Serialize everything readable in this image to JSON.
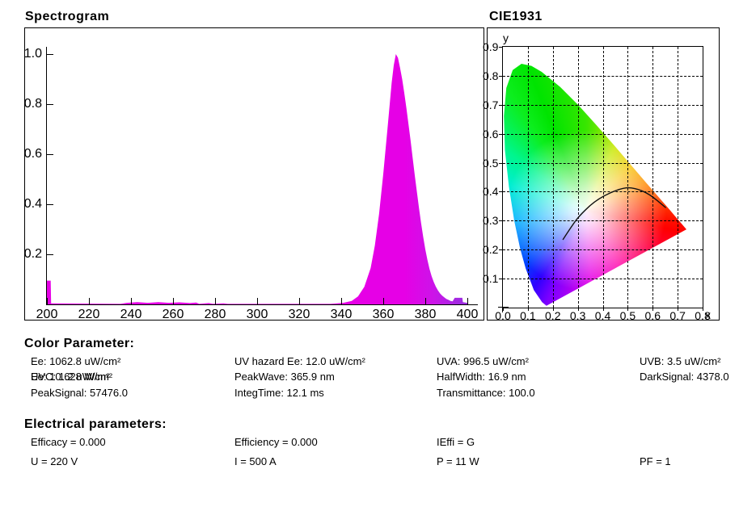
{
  "spectrogram_panel": {
    "title": "Spectrogram"
  },
  "cie_panel": {
    "title": "CIE1931",
    "xlabel": "x",
    "ylabel": "y"
  },
  "chart_data": [
    {
      "id": "spectrogram",
      "type": "area",
      "title": "Spectrogram",
      "xlabel": "",
      "ylabel": "",
      "xlim": [
        200,
        400
      ],
      "ylim": [
        0,
        1.05
      ],
      "grid": false,
      "x_ticks": [
        200,
        220,
        240,
        260,
        280,
        300,
        320,
        340,
        360,
        380,
        400
      ],
      "y_ticks": [
        0.2,
        0.4,
        0.6,
        0.8,
        1.0
      ],
      "peak_wavelength_nm": 365.9,
      "half_width_nm": 16.9,
      "fill_color": "#e600e6",
      "tail_color": "#9a2fe0",
      "points": [
        [
          200,
          0.095
        ],
        [
          201.8,
          0.095
        ],
        [
          202,
          0.004
        ],
        [
          235,
          0.002
        ],
        [
          238,
          0.006
        ],
        [
          243,
          0.009
        ],
        [
          248,
          0.006
        ],
        [
          253,
          0.009
        ],
        [
          258,
          0.006
        ],
        [
          263,
          0.008
        ],
        [
          268,
          0.005
        ],
        [
          271,
          0.007
        ],
        [
          272.5,
          0.002
        ],
        [
          277,
          0.005
        ],
        [
          279,
          0.002
        ],
        [
          284,
          0.004
        ],
        [
          286,
          0.002
        ],
        [
          300,
          0.002
        ],
        [
          335,
          0.002
        ],
        [
          341,
          0.006
        ],
        [
          345,
          0.014
        ],
        [
          348,
          0.032
        ],
        [
          351,
          0.07
        ],
        [
          354,
          0.145
        ],
        [
          356,
          0.235
        ],
        [
          358,
          0.36
        ],
        [
          360,
          0.52
        ],
        [
          362,
          0.7
        ],
        [
          364,
          0.885
        ],
        [
          365,
          0.955
        ],
        [
          366,
          1.0
        ],
        [
          367,
          0.985
        ],
        [
          368,
          0.945
        ],
        [
          369,
          0.9
        ],
        [
          370,
          0.845
        ],
        [
          371,
          0.785
        ],
        [
          372,
          0.72
        ],
        [
          373,
          0.655
        ],
        [
          374,
          0.585
        ],
        [
          375,
          0.515
        ],
        [
          376,
          0.45
        ],
        [
          377,
          0.385
        ],
        [
          378,
          0.325
        ],
        [
          379,
          0.27
        ],
        [
          380,
          0.22
        ],
        [
          381,
          0.178
        ],
        [
          382,
          0.142
        ],
        [
          383,
          0.113
        ],
        [
          384,
          0.09
        ],
        [
          385,
          0.071
        ],
        [
          386,
          0.056
        ],
        [
          387,
          0.044
        ],
        [
          388,
          0.035
        ],
        [
          389,
          0.028
        ],
        [
          390,
          0.022
        ],
        [
          391,
          0.018
        ],
        [
          392,
          0.014
        ],
        [
          393,
          0.012
        ],
        [
          394,
          0.026
        ],
        [
          397.6,
          0.026
        ],
        [
          397.9,
          0.009
        ],
        [
          399,
          0.007
        ],
        [
          400,
          0.006
        ]
      ]
    },
    {
      "id": "cie1931",
      "type": "scatter",
      "title": "CIE1931",
      "xlabel": "x",
      "ylabel": "y",
      "xlim": [
        0,
        0.8
      ],
      "ylim": [
        0,
        0.9
      ],
      "grid": "dashed",
      "x_tick_labels": [
        "0.0",
        "0.1",
        "0.2",
        "0.3",
        "0.4",
        "0.5",
        "0.6",
        "0.7",
        "0.8"
      ],
      "y_tick_labels": [
        "0.1",
        "0.2",
        "0.3",
        "0.4",
        "0.5",
        "0.6",
        "0.7",
        "0.8",
        "0.9"
      ],
      "marker": [
        0.0,
        0.0
      ],
      "planckian_locus": [
        [
          0.24,
          0.234
        ],
        [
          0.2807,
          0.2884
        ],
        [
          0.3135,
          0.3237
        ],
        [
          0.3805,
          0.3768
        ],
        [
          0.477,
          0.4137
        ],
        [
          0.5267,
          0.4133
        ],
        [
          0.5857,
          0.3931
        ],
        [
          0.6528,
          0.3444
        ]
      ],
      "spectral_locus": [
        [
          0.1741,
          0.005
        ],
        [
          0.1566,
          0.0177
        ],
        [
          0.1241,
          0.0578
        ],
        [
          0.0913,
          0.1327
        ],
        [
          0.0687,
          0.2007
        ],
        [
          0.0454,
          0.295
        ],
        [
          0.0235,
          0.4127
        ],
        [
          0.0082,
          0.5384
        ],
        [
          0.0039,
          0.6548
        ],
        [
          0.0139,
          0.7502
        ],
        [
          0.0389,
          0.812
        ],
        [
          0.0743,
          0.8338
        ],
        [
          0.1142,
          0.8262
        ],
        [
          0.1547,
          0.8059
        ],
        [
          0.2296,
          0.7543
        ],
        [
          0.3016,
          0.6923
        ],
        [
          0.3731,
          0.6245
        ],
        [
          0.4441,
          0.5547
        ],
        [
          0.5125,
          0.4866
        ],
        [
          0.5752,
          0.4242
        ],
        [
          0.627,
          0.3725
        ],
        [
          0.6915,
          0.3083
        ],
        [
          0.7347,
          0.2653
        ]
      ]
    }
  ],
  "color_parameters": {
    "heading": "Color Parameter:",
    "grid": [
      [
        "Ee: 1062.8 uW/cm²",
        "UV hazard Ee: 12.0 uW/cm²",
        "UVA: 996.5 uW/cm²",
        "UVB: 3.5 uW/cm²"
      ],
      [
        null,
        "PeakWave: 365.9 nm",
        "HalfWidth: 16.9 nm",
        "DarkSignal: 4378.0"
      ],
      [
        "PeakSignal: 57476.0",
        "IntegTime: 12.1 ms",
        "Transmittance: 100.0"
      ]
    ],
    "overlap_text_a": "Ee: 10.628 W/m²",
    "overlap_text_b": "UVC: 1.2 uW/cm²"
  },
  "electrical_parameters": {
    "heading": "Electrical parameters:",
    "grid": [
      [
        "Efficacy = 0.000",
        "Efficiency = 0.000",
        "IEffi = G"
      ],
      [
        "U = 220 V",
        "I = 500 A",
        "P = 11 W",
        "PF = 1"
      ]
    ]
  }
}
